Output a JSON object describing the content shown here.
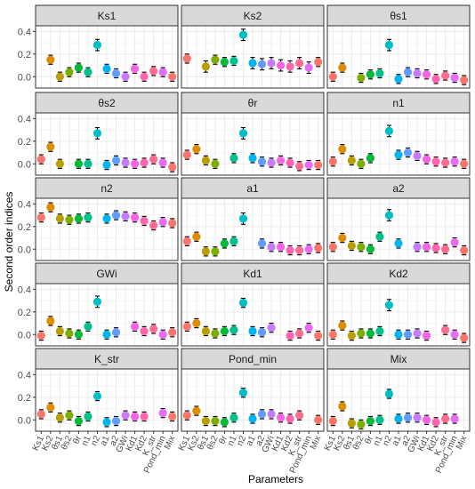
{
  "chart_data": {
    "type": "scatter",
    "layout": "facet-grid 5x3",
    "xlabel": "Parameters",
    "ylabel": "Second order indices",
    "ylim": [
      -0.1,
      0.45
    ],
    "yticks": [
      0.0,
      0.2,
      0.4
    ],
    "grid": true,
    "error_bars": true,
    "categories": [
      "Ks1",
      "Ks2",
      "θs1",
      "θs2",
      "θr",
      "n1",
      "n2",
      "a1",
      "a2",
      "GWi",
      "Kd1",
      "Kd2",
      "K_str",
      "Pond_min",
      "Mix"
    ],
    "colors": [
      "#F8766D",
      "#DE8C00",
      "#B79F00",
      "#7CAE00",
      "#00BA38",
      "#00C08B",
      "#00BFC4",
      "#00B4F0",
      "#619CFF",
      "#C77CFF",
      "#F564E3",
      "#FF64B0",
      "#FF6C91",
      "#E76BF3",
      "#F8766D"
    ],
    "panels": [
      {
        "title": "Ks1",
        "values": [
          null,
          0.15,
          0.0,
          0.04,
          0.08,
          0.04,
          0.28,
          0.07,
          0.03,
          0.0,
          0.07,
          0.0,
          0.05,
          0.04,
          0.0
        ],
        "errors": [
          null,
          0.04,
          0.04,
          0.04,
          0.04,
          0.04,
          0.05,
          0.04,
          0.04,
          0.04,
          0.04,
          0.04,
          0.04,
          0.04,
          0.04
        ]
      },
      {
        "title": "Ks2",
        "values": [
          0.16,
          null,
          0.09,
          0.15,
          0.13,
          0.14,
          0.37,
          0.12,
          0.11,
          0.12,
          0.1,
          0.09,
          0.12,
          0.08,
          0.13
        ],
        "errors": [
          0.04,
          null,
          0.05,
          0.04,
          0.04,
          0.04,
          0.05,
          0.05,
          0.05,
          0.05,
          0.05,
          0.05,
          0.05,
          0.05,
          0.04
        ]
      },
      {
        "title": "θs1",
        "values": [
          0.0,
          0.08,
          null,
          -0.01,
          0.02,
          0.03,
          0.28,
          -0.02,
          0.04,
          0.03,
          0.02,
          -0.02,
          0.01,
          -0.01,
          -0.03
        ],
        "errors": [
          0.04,
          0.04,
          null,
          0.04,
          0.04,
          0.04,
          0.05,
          0.04,
          0.04,
          0.04,
          0.04,
          0.04,
          0.04,
          0.04,
          0.04
        ]
      },
      {
        "title": "θs2",
        "values": [
          0.04,
          0.15,
          0.0,
          null,
          0.0,
          0.0,
          0.27,
          -0.01,
          0.03,
          0.01,
          0.0,
          0.01,
          0.04,
          0.01,
          -0.03
        ],
        "errors": [
          0.04,
          0.04,
          0.04,
          null,
          0.04,
          0.04,
          0.05,
          0.04,
          0.04,
          0.04,
          0.04,
          0.04,
          0.04,
          0.04,
          0.04
        ]
      },
      {
        "title": "θr",
        "values": [
          0.08,
          0.13,
          0.03,
          0.0,
          null,
          0.05,
          0.27,
          0.05,
          0.02,
          0.01,
          0.03,
          0.01,
          -0.02,
          -0.01,
          -0.01
        ],
        "errors": [
          0.04,
          0.04,
          0.04,
          0.04,
          null,
          0.04,
          0.05,
          0.04,
          0.04,
          0.04,
          0.04,
          0.04,
          0.04,
          0.04,
          0.04
        ]
      },
      {
        "title": "n1",
        "values": [
          0.02,
          0.13,
          0.03,
          0.0,
          0.05,
          null,
          0.29,
          0.08,
          0.1,
          0.07,
          0.04,
          0.02,
          0.01,
          0.02,
          0.0
        ],
        "errors": [
          0.04,
          0.04,
          0.04,
          0.04,
          0.04,
          null,
          0.05,
          0.04,
          0.04,
          0.04,
          0.04,
          0.04,
          0.04,
          0.04,
          0.04
        ]
      },
      {
        "title": "n2",
        "values": [
          0.28,
          0.37,
          0.27,
          0.26,
          0.27,
          0.28,
          null,
          0.27,
          0.3,
          0.29,
          0.28,
          0.25,
          0.21,
          0.24,
          0.23
        ],
        "errors": [
          0.04,
          0.04,
          0.04,
          0.04,
          0.04,
          0.04,
          null,
          0.04,
          0.04,
          0.04,
          0.04,
          0.04,
          0.04,
          0.04,
          0.04
        ]
      },
      {
        "title": "a1",
        "values": [
          0.07,
          0.11,
          -0.02,
          -0.02,
          0.05,
          0.07,
          0.27,
          null,
          0.05,
          0.02,
          0.02,
          -0.01,
          -0.01,
          0.0,
          0.01
        ],
        "errors": [
          0.04,
          0.04,
          0.04,
          0.04,
          0.04,
          0.04,
          0.05,
          null,
          0.04,
          0.04,
          0.04,
          0.04,
          0.04,
          0.04,
          0.04
        ]
      },
      {
        "title": "a2",
        "values": [
          0.02,
          0.1,
          0.03,
          0.02,
          0.0,
          0.11,
          0.3,
          0.05,
          null,
          0.02,
          0.02,
          0.01,
          0.0,
          0.06,
          -0.01
        ],
        "errors": [
          0.04,
          0.04,
          0.04,
          0.04,
          0.04,
          0.04,
          0.05,
          0.04,
          null,
          0.04,
          0.04,
          0.04,
          0.04,
          0.04,
          0.04
        ]
      },
      {
        "title": "GWi",
        "values": [
          -0.01,
          0.12,
          0.03,
          0.01,
          0.0,
          0.07,
          0.29,
          0.0,
          0.02,
          null,
          0.07,
          0.03,
          0.05,
          0.0,
          0.02
        ],
        "errors": [
          0.04,
          0.04,
          0.04,
          0.04,
          0.04,
          0.04,
          0.05,
          0.04,
          0.04,
          null,
          0.04,
          0.04,
          0.04,
          0.04,
          0.04
        ]
      },
      {
        "title": "Kd1",
        "values": [
          0.07,
          0.1,
          0.03,
          0.01,
          0.03,
          0.04,
          0.28,
          0.03,
          0.02,
          0.06,
          null,
          -0.01,
          0.01,
          0.06,
          -0.01
        ],
        "errors": [
          0.04,
          0.04,
          0.04,
          0.04,
          0.04,
          0.04,
          0.04,
          0.04,
          0.04,
          0.04,
          null,
          0.04,
          0.04,
          0.04,
          0.04
        ]
      },
      {
        "title": "Kd2",
        "values": [
          0.0,
          0.08,
          -0.01,
          0.01,
          0.01,
          0.03,
          0.26,
          0.0,
          0.0,
          0.01,
          -0.01,
          null,
          0.04,
          0.0,
          -0.03
        ],
        "errors": [
          0.04,
          0.04,
          0.04,
          0.04,
          0.04,
          0.04,
          0.05,
          0.04,
          0.04,
          0.04,
          0.04,
          null,
          0.04,
          0.04,
          0.04
        ]
      },
      {
        "title": "K_str",
        "values": [
          0.05,
          0.11,
          0.02,
          0.04,
          -0.01,
          0.03,
          0.21,
          -0.02,
          -0.01,
          0.04,
          0.03,
          0.03,
          null,
          0.06,
          0.03
        ],
        "errors": [
          0.04,
          0.04,
          0.04,
          0.04,
          0.04,
          0.04,
          0.04,
          0.04,
          0.04,
          0.04,
          0.04,
          0.04,
          null,
          0.04,
          0.04
        ]
      },
      {
        "title": "Pond_min",
        "values": [
          0.04,
          0.08,
          -0.01,
          -0.01,
          -0.02,
          0.02,
          0.24,
          0.01,
          0.05,
          0.05,
          0.02,
          0.01,
          0.04,
          null,
          0.0
        ],
        "errors": [
          0.04,
          0.04,
          0.04,
          0.04,
          0.04,
          0.04,
          0.04,
          0.04,
          0.04,
          0.04,
          0.04,
          0.04,
          0.04,
          null,
          0.04
        ]
      },
      {
        "title": "Mix",
        "values": [
          -0.01,
          0.12,
          -0.03,
          -0.04,
          -0.01,
          0.0,
          0.23,
          0.01,
          0.02,
          0.02,
          0.0,
          -0.02,
          0.01,
          0.01,
          null
        ],
        "errors": [
          0.04,
          0.04,
          0.04,
          0.04,
          0.04,
          0.04,
          0.04,
          0.04,
          0.04,
          0.04,
          0.04,
          0.04,
          0.04,
          0.04,
          null
        ]
      }
    ]
  }
}
